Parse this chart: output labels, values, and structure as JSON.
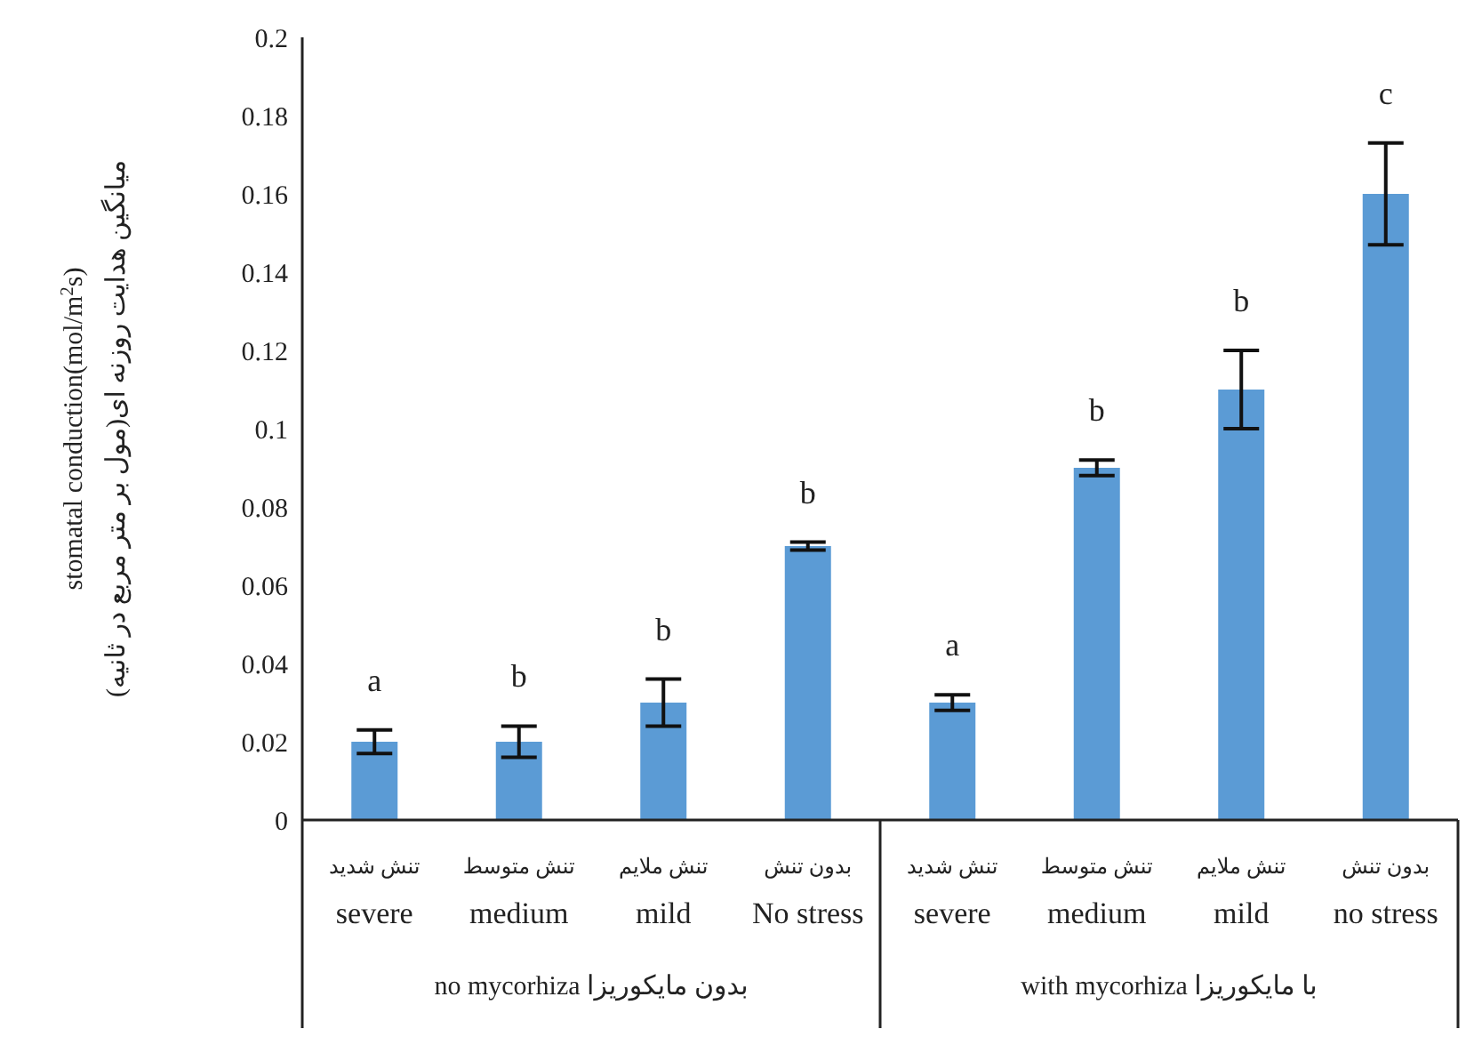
{
  "chart_data": {
    "type": "bar",
    "ylabel": "stomatal conduction(mol/m$^{2}$s)\n(میانگین هدایت روزنه ای(مول بر متر مربع در ثانیه",
    "categories": [
      "تنش شدید\nsevere",
      "تنش متوسط\nmedium",
      "تنش ملایم\nmild",
      "بدون تنش\nNo stress",
      "تنش شدید\nsevere",
      "تنش متوسط\nmedium",
      "تنش ملایم\nmild",
      "بدون تنش\nno stress"
    ],
    "values": [
      0.02,
      0.02,
      0.03,
      0.07,
      0.03,
      0.09,
      0.11,
      0.16
    ],
    "errors": [
      0.003,
      0.004,
      0.006,
      0.001,
      0.002,
      0.002,
      0.01,
      0.013
    ],
    "value_labels": [
      "a",
      "b",
      "b",
      "b",
      "a",
      "b",
      "b",
      "c"
    ],
    "color": "#5b9bd5",
    "annotations": [
      "no mycorhiza بدون مایکوریزا",
      "with mycorhiza با مایکوریزا"
    ],
    "ylim": [
      0,
      0.2
    ],
    "yticks": [
      0,
      0.02,
      0.04,
      0.06,
      0.08,
      0.1,
      0.12,
      0.14,
      0.16,
      0.18,
      0.2
    ],
    "grid": false,
    "legend": false
  }
}
